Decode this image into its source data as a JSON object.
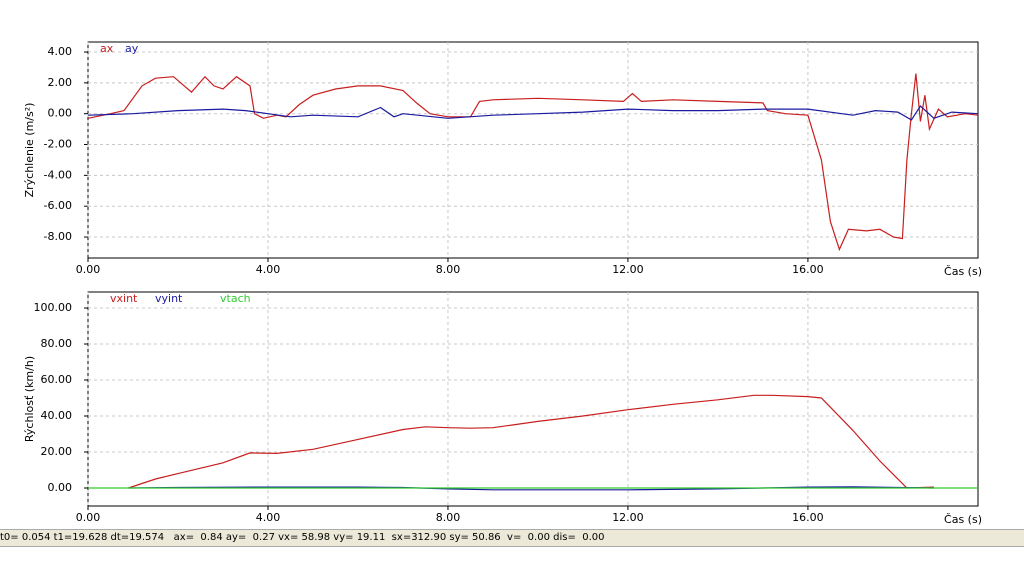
{
  "chart_data": [
    {
      "type": "line",
      "y_label": "Zrýchlenie  (m/s²)",
      "x_label": "Čas (s)",
      "grid": true,
      "xlim": [
        0,
        19.78
      ],
      "xticks": [
        {
          "value": 0,
          "label": "0.00"
        },
        {
          "value": 4,
          "label": "4.00"
        },
        {
          "value": 8,
          "label": "8.00"
        },
        {
          "value": 12,
          "label": "12.00"
        },
        {
          "value": 16,
          "label": "16.00"
        }
      ],
      "ylim": [
        -9.36,
        4.65
      ],
      "yticks": [
        {
          "value": 4,
          "label": "4.00"
        },
        {
          "value": 2,
          "label": "2.00"
        },
        {
          "value": 0,
          "label": "0.00"
        },
        {
          "value": -2,
          "label": "-2.00"
        },
        {
          "value": -4,
          "label": "-4.00"
        },
        {
          "value": -6,
          "label": "-6.00"
        },
        {
          "value": -8,
          "label": "-8.00"
        }
      ],
      "series": [
        {
          "name": "ax",
          "color": "#c81e1e",
          "x": [
            0,
            0.5,
            0.8,
            1.2,
            1.5,
            1.9,
            2.1,
            2.3,
            2.6,
            2.8,
            3.0,
            3.3,
            3.6,
            3.7,
            3.9,
            4.2,
            4.4,
            4.7,
            5.0,
            5.5,
            6.0,
            6.5,
            7.0,
            7.3,
            7.6,
            8.0,
            8.5,
            8.7,
            9.0,
            10,
            11,
            11.9,
            12.1,
            12.3,
            13,
            14,
            15,
            15.1,
            15.5,
            16.0,
            16.3,
            16.5,
            16.7,
            16.9,
            17.3,
            17.6,
            17.9,
            18.1,
            18.2,
            18.3,
            18.4,
            18.5,
            18.6,
            18.7,
            18.9,
            19.1,
            19.5,
            19.78
          ],
          "values": [
            -0.3,
            0,
            0.2,
            1.8,
            2.3,
            2.4,
            1.9,
            1.4,
            2.4,
            1.8,
            1.6,
            2.4,
            1.8,
            0,
            -0.3,
            -0.1,
            -0.2,
            0.6,
            1.2,
            1.6,
            1.8,
            1.8,
            1.5,
            0.7,
            0,
            -0.2,
            -0.2,
            0.8,
            0.9,
            1.0,
            0.9,
            0.8,
            1.3,
            0.8,
            0.9,
            0.8,
            0.7,
            0.2,
            0,
            -0.1,
            -3,
            -7,
            -8.8,
            -7.5,
            -7.6,
            -7.5,
            -8.0,
            -8.1,
            -3,
            0,
            2.6,
            -0.5,
            1.2,
            -1,
            0.3,
            -0.2,
            0,
            -0.1
          ]
        },
        {
          "name": "ay",
          "color": "#1a1aa0",
          "x": [
            0,
            1,
            2,
            3,
            3.5,
            4,
            4.5,
            5,
            6,
            6.5,
            6.8,
            7,
            8,
            9,
            10,
            11,
            12,
            13,
            14,
            15,
            16,
            17,
            17.5,
            18,
            18.3,
            18.5,
            18.8,
            19.2,
            19.78
          ],
          "values": [
            -0.1,
            0,
            0.2,
            0.3,
            0.2,
            0,
            -0.2,
            -0.1,
            -0.2,
            0.4,
            -0.2,
            0,
            -0.3,
            -0.1,
            0,
            0.1,
            0.3,
            0.2,
            0.2,
            0.3,
            0.3,
            -0.1,
            0.2,
            0.1,
            -0.4,
            0.5,
            -0.3,
            0.1,
            0
          ]
        }
      ]
    },
    {
      "type": "line",
      "y_label": "Rýchlosť  (km/h)",
      "x_label": "Čas (s)",
      "grid": true,
      "xlim": [
        0,
        19.78
      ],
      "xticks": [
        {
          "value": 0,
          "label": "0.00"
        },
        {
          "value": 4,
          "label": "4.00"
        },
        {
          "value": 8,
          "label": "8.00"
        },
        {
          "value": 12,
          "label": "12.00"
        },
        {
          "value": 16,
          "label": "16.00"
        }
      ],
      "ylim": [
        -10,
        108.9
      ],
      "yticks": [
        {
          "value": 100,
          "label": "100.00"
        },
        {
          "value": 80,
          "label": "80.00"
        },
        {
          "value": 60,
          "label": "60.00"
        },
        {
          "value": 40,
          "label": "40.00"
        },
        {
          "value": 20,
          "label": "20.00"
        },
        {
          "value": 0,
          "label": "0.00"
        }
      ],
      "series": [
        {
          "name": "vxint",
          "color": "#c81e1e",
          "x": [
            0.9,
            1.5,
            2,
            3,
            3.6,
            4.2,
            5,
            6,
            7,
            7.5,
            8,
            8.5,
            9,
            10,
            11,
            12,
            13,
            14,
            14.8,
            15.2,
            16,
            16.3,
            17,
            17.6,
            18.2,
            18.8
          ],
          "values": [
            0,
            5,
            8,
            14,
            19.5,
            19.2,
            21.5,
            27,
            32.5,
            34,
            33.5,
            33.2,
            33.5,
            37,
            40,
            43.5,
            46.5,
            49,
            51.5,
            51.5,
            50.8,
            50,
            32,
            15,
            0,
            0.5
          ]
        },
        {
          "name": "vyint",
          "color": "#1a1aa0",
          "x": [
            0.9,
            2,
            4,
            6,
            7,
            8,
            9,
            12,
            14,
            15,
            16,
            17,
            18,
            18.8
          ],
          "values": [
            0,
            0.3,
            0.5,
            0.5,
            0.3,
            -0.5,
            -1,
            -1,
            -0.5,
            0,
            0.5,
            0.6,
            0.3,
            0
          ]
        },
        {
          "name": "vtach",
          "color": "#33cc33",
          "x": [
            0,
            19.78
          ],
          "values": [
            0,
            0
          ]
        }
      ]
    }
  ],
  "status_bar": "t0= 0.054 t1=19.628 dt=19.574   ax=  0.84 ay=  0.27 vx= 58.98 vy= 19.11  sx=312.90 sy= 50.86  v=  0.00 dis=  0.00"
}
